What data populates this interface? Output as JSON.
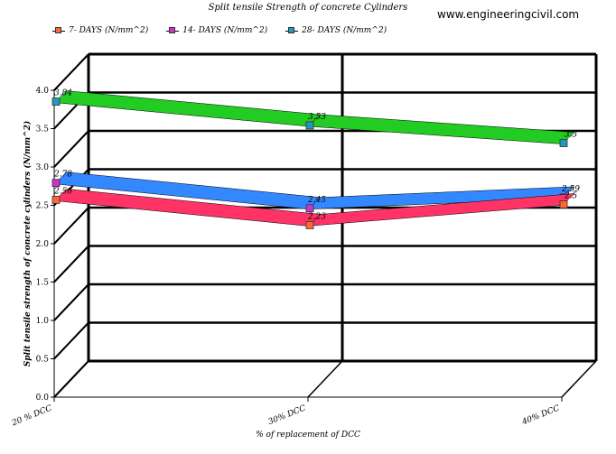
{
  "watermark": "www.engineeringcivil.com",
  "chart_data": {
    "type": "line",
    "title": "Split tensile Strength of concrete Cylinders",
    "xlabel": "% of replacement of DCC",
    "ylabel": "Split tensile strength of concrete cylinders (N/mm^2)",
    "categories": [
      "20 % DCC",
      "30% DCC",
      "40% DCC"
    ],
    "ylim": [
      0,
      4
    ],
    "yticks": [
      "0.0",
      "0.5",
      "1.0",
      "1.5",
      "2.0",
      "2.5",
      "3.0",
      "3.5",
      "4.0"
    ],
    "grid": true,
    "legend_position": "top-left",
    "series": [
      {
        "name": "7- DAYS (N/mm^2)",
        "values": [
          2.56,
          2.23,
          2.5
        ],
        "labels": [
          "2.56",
          "2.23",
          "2.5"
        ],
        "color": "#ff3366",
        "marker": "#ff6633"
      },
      {
        "name": "14- DAYS (N/mm^2)",
        "values": [
          2.78,
          2.45,
          2.59
        ],
        "labels": [
          "2.78",
          "2.45",
          "2.59"
        ],
        "color": "#3388ff",
        "marker": "#cc33cc"
      },
      {
        "name": "28- DAYS (N/mm^2)",
        "values": [
          3.84,
          3.53,
          3.3
        ],
        "labels": [
          "3.84",
          "3.53",
          "3.3"
        ],
        "color": "#22cc22",
        "marker": "#2299bb"
      }
    ]
  }
}
